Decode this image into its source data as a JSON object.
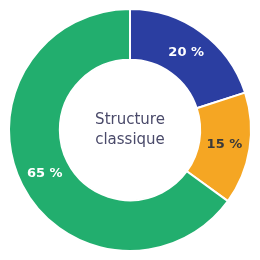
{
  "chart_data": {
    "type": "donut",
    "values": [
      20,
      15,
      65
    ],
    "value_labels": [
      "20 %",
      "15 %",
      "65 %"
    ],
    "colors": [
      "#2B3EA1",
      "#F5A623",
      "#22AE6E"
    ],
    "data_labels": true,
    "annotations": [
      "Structure",
      "classique"
    ],
    "legend": false
  }
}
